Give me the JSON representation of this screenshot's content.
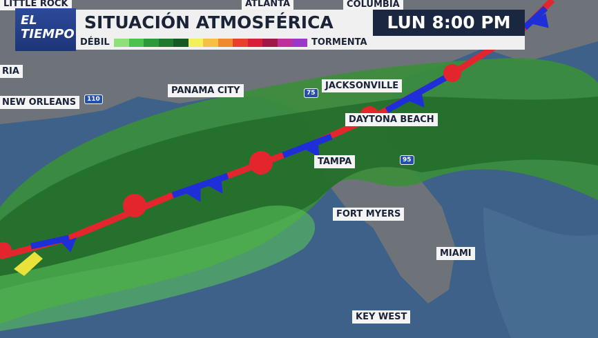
{
  "logo": {
    "line1": "EL",
    "line2": "TIEMPO"
  },
  "header": {
    "title": "SITUACIÓN ATMOSFÉRICA",
    "day": "LUN",
    "time": "8:00 PM"
  },
  "legend": {
    "low": "DÉBIL",
    "high": "TORMENTA"
  },
  "cities": [
    "LITTLE ROCK",
    "ATLANTA",
    "COLUMBIA",
    "RIA",
    "NEW ORLEANS",
    "PANAMA CITY",
    "JACKSONVILLE",
    "DAYTONA BEACH",
    "TAMPA",
    "FORT MYERS",
    "MIAMI",
    "KEY WEST"
  ],
  "highways": [
    "75",
    "95",
    "110"
  ]
}
